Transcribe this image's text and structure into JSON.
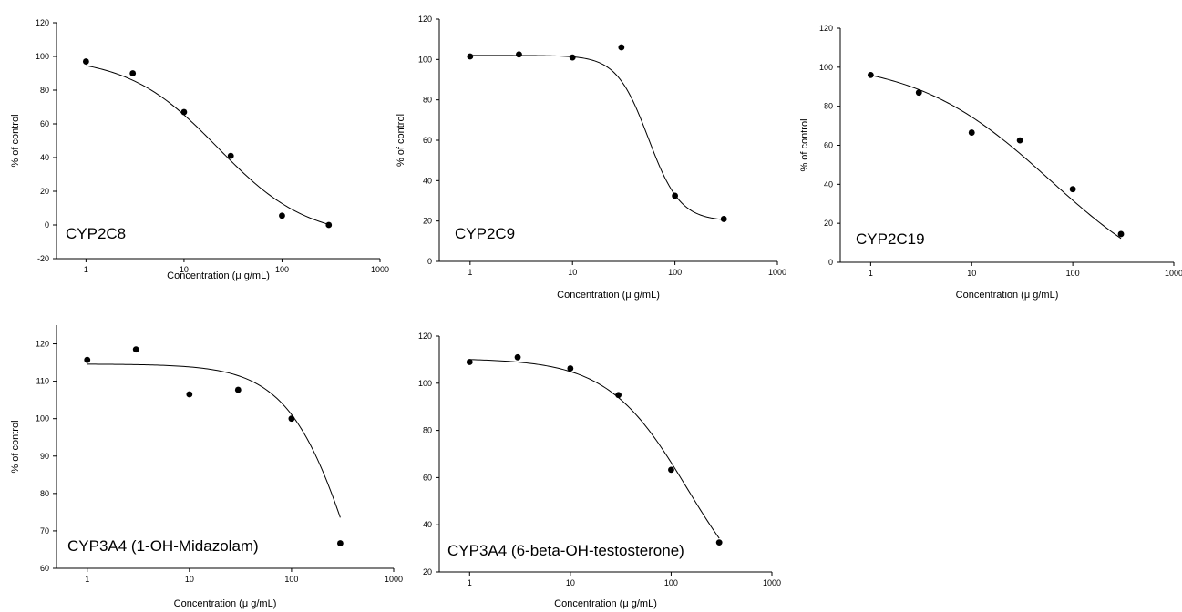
{
  "chart_data": [
    {
      "type": "scatter",
      "title": "",
      "annotation": "CYP2C8",
      "xlabel": "Concentration (μ g/mL)",
      "ylabel": "% of control",
      "xscale": "log",
      "xlim": [
        0.5,
        1000
      ],
      "ylim": [
        -20,
        120
      ],
      "xticks": [
        "1",
        "10",
        "100",
        "1000"
      ],
      "yticks": [
        "-20",
        "0",
        "20",
        "40",
        "60",
        "80",
        "100",
        "120"
      ],
      "series": [
        {
          "x": [
            1,
            3,
            10,
            30,
            100,
            300
          ],
          "y": [
            97,
            90,
            67,
            41,
            5.5,
            0
          ]
        }
      ],
      "fit": {
        "type": "sigmoid",
        "top": 100,
        "bottom": -8,
        "ic50": 22,
        "hill": 0.95
      }
    },
    {
      "type": "scatter",
      "title": "",
      "annotation": "CYP2C9",
      "xlabel": "Concentration (μ g/mL)",
      "ylabel": "% of control",
      "xscale": "log",
      "xlim": [
        0.5,
        1000
      ],
      "ylim": [
        0,
        120
      ],
      "xticks": [
        "1",
        "10",
        "100",
        "1000"
      ],
      "yticks": [
        "0",
        "20",
        "40",
        "60",
        "80",
        "100",
        "120"
      ],
      "series": [
        {
          "x": [
            1,
            3,
            10,
            30,
            100,
            300
          ],
          "y": [
            101.5,
            102.5,
            101,
            106,
            32.5,
            21
          ]
        }
      ],
      "fit": {
        "type": "sigmoid",
        "top": 102,
        "bottom": 20,
        "ic50": 55,
        "hill": 2.8
      }
    },
    {
      "type": "scatter",
      "title": "",
      "annotation": "CYP2C19",
      "xlabel": "Concentration (μ g/mL)",
      "ylabel": "% of control",
      "xscale": "log",
      "xlim": [
        0.5,
        1000
      ],
      "ylim": [
        0,
        120
      ],
      "xticks": [
        "1",
        "10",
        "100",
        "1000"
      ],
      "yticks": [
        "0",
        "20",
        "40",
        "60",
        "80",
        "100",
        "120"
      ],
      "series": [
        {
          "x": [
            1,
            3,
            10,
            30,
            100,
            300
          ],
          "y": [
            96,
            87,
            66.5,
            62.5,
            37.5,
            14.5
          ]
        }
      ],
      "fit": {
        "type": "sigmoid",
        "top": 104,
        "bottom": -20,
        "ic50": 60,
        "hill": 0.65
      }
    },
    {
      "type": "scatter",
      "title": "",
      "annotation": "CYP3A4 (1-OH-Midazolam)",
      "xlabel": "Concentration (μ g/mL)",
      "ylabel": "% of control",
      "xscale": "log",
      "xlim": [
        0.5,
        1000
      ],
      "ylim": [
        60,
        125
      ],
      "xticks": [
        "1",
        "10",
        "100",
        "1000"
      ],
      "yticks": [
        "60",
        "70",
        "80",
        "90",
        "100",
        "110",
        "120"
      ],
      "series": [
        {
          "x": [
            1,
            3,
            10,
            30,
            100,
            300
          ],
          "y": [
            115.7,
            118.5,
            106.5,
            107.7,
            100,
            66.7
          ]
        }
      ],
      "fit": {
        "type": "sigmoid",
        "top": 114.6,
        "bottom": 0,
        "ic50": 470,
        "hill": 1.3
      }
    },
    {
      "type": "scatter",
      "title": "",
      "annotation": "CYP3A4 (6-beta-OH-testosterone)",
      "xlabel": "Concentration (μ g/mL)",
      "ylabel": "",
      "xscale": "log",
      "xlim": [
        0.5,
        1000
      ],
      "ylim": [
        20,
        120
      ],
      "xticks": [
        "1",
        "10",
        "100",
        "1000"
      ],
      "yticks": [
        "20",
        "40",
        "60",
        "80",
        "100",
        "120"
      ],
      "series": [
        {
          "x": [
            1,
            3,
            10,
            30,
            100,
            300
          ],
          "y": [
            109,
            111,
            106.3,
            95,
            63.3,
            32.5
          ]
        }
      ],
      "fit": {
        "type": "sigmoid",
        "top": 110.5,
        "bottom": 0,
        "ic50": 145,
        "hill": 1.1
      }
    }
  ]
}
